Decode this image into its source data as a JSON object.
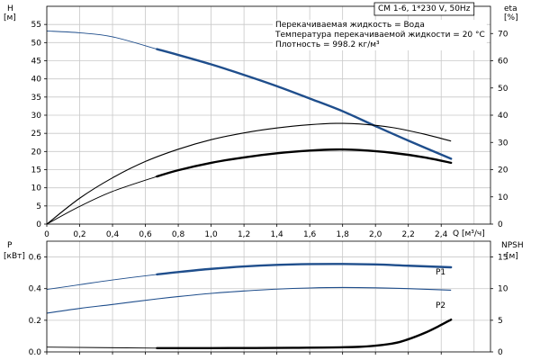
{
  "chart_data": [
    {
      "type": "line",
      "title": "CM 1-6, 1*230 V, 50Hz",
      "annotations": [
        "Перекачиваемая жидкость = Вода",
        "Температура перекачиваемой жидкости = 20 °C",
        "Плотность = 998.2 кг/м³"
      ],
      "xlabel": "Q [м³/ч]",
      "x_unit": "[м³/ч]",
      "xlim": [
        0,
        2.7
      ],
      "x_ticks": [
        "0",
        "0,2",
        "0,4",
        "0,6",
        "0,8",
        "1,0",
        "1,2",
        "1,4",
        "1,6",
        "1,8",
        "2,0",
        "2,2",
        "2,4"
      ],
      "y_left": {
        "label": "H",
        "unit": "[м]",
        "lim": [
          0,
          60
        ],
        "ticks": [
          "0",
          "5",
          "10",
          "15",
          "20",
          "25",
          "30",
          "35",
          "40",
          "45",
          "50",
          "55"
        ]
      },
      "y_right": {
        "label": "eta",
        "unit": "[%]",
        "lim": [
          0,
          80
        ],
        "ticks": [
          "0",
          "10",
          "20",
          "30",
          "40",
          "50",
          "60",
          "70"
        ]
      },
      "grid": true,
      "series": [
        {
          "id": "H",
          "axis": "left",
          "color": "#1f4e8c",
          "x": [
            0,
            0.2,
            0.4,
            0.67,
            0.8,
            1.0,
            1.2,
            1.4,
            1.6,
            1.8,
            2.0,
            2.2,
            2.46
          ],
          "y": [
            53.2,
            52.7,
            51.6,
            48.2,
            46.6,
            44.0,
            41.1,
            38.0,
            34.6,
            31.1,
            27.0,
            23.0,
            18.0
          ],
          "solid_from": 0.67
        },
        {
          "id": "eta-total",
          "axis": "right",
          "color": "#000000",
          "x": [
            0,
            0.2,
            0.4,
            0.6,
            0.8,
            1.0,
            1.2,
            1.4,
            1.6,
            1.76,
            1.9,
            2.1,
            2.3,
            2.46
          ],
          "y": [
            0,
            9.5,
            17.0,
            23.0,
            27.5,
            31.0,
            33.5,
            35.3,
            36.5,
            37.0,
            36.8,
            35.5,
            33.0,
            30.5
          ]
        },
        {
          "id": "eta-hydraulic",
          "axis": "right",
          "color": "#000000",
          "x": [
            0,
            0.2,
            0.4,
            0.67,
            0.8,
            1.0,
            1.2,
            1.4,
            1.6,
            1.76,
            1.9,
            2.1,
            2.3,
            2.46
          ],
          "y": [
            0,
            6.5,
            12.0,
            17.5,
            19.8,
            22.5,
            24.5,
            26.0,
            27.0,
            27.4,
            27.2,
            26.2,
            24.5,
            22.5
          ],
          "solid_from": 0.67
        }
      ]
    },
    {
      "type": "line",
      "xlim": [
        0,
        2.7
      ],
      "y_left": {
        "label": "P",
        "unit": "[кВт]",
        "lim": [
          0,
          0.7
        ],
        "ticks": [
          "0.0",
          "0.2",
          "0.4",
          "0.6"
        ]
      },
      "y_right": {
        "label": "NPSH",
        "unit": "[м]",
        "lim": [
          0,
          17.5
        ],
        "ticks": [
          "0",
          "5",
          "10",
          "15"
        ]
      },
      "grid": true,
      "series": [
        {
          "id": "P1",
          "name": "P1",
          "axis": "left",
          "color": "#1f4e8c",
          "x": [
            0,
            0.2,
            0.4,
            0.67,
            0.8,
            1.0,
            1.2,
            1.4,
            1.6,
            1.8,
            2.0,
            2.2,
            2.46
          ],
          "y": [
            0.395,
            0.425,
            0.455,
            0.49,
            0.505,
            0.525,
            0.54,
            0.55,
            0.555,
            0.556,
            0.553,
            0.545,
            0.535
          ],
          "solid_from": 0.67
        },
        {
          "id": "P2",
          "name": "P2",
          "axis": "left",
          "color": "#1f4e8c",
          "x": [
            0,
            0.2,
            0.4,
            0.67,
            0.8,
            1.0,
            1.2,
            1.4,
            1.6,
            1.8,
            2.0,
            2.2,
            2.46
          ],
          "y": [
            0.245,
            0.275,
            0.3,
            0.335,
            0.35,
            0.37,
            0.385,
            0.397,
            0.404,
            0.407,
            0.405,
            0.4,
            0.39
          ]
        },
        {
          "id": "NPSH",
          "axis": "right",
          "color": "#000000",
          "x": [
            0,
            0.67,
            1.0,
            1.5,
            1.9,
            2.1,
            2.2,
            2.3,
            2.38,
            2.46
          ],
          "y": [
            0.75,
            0.6,
            0.6,
            0.65,
            0.8,
            1.3,
            2.0,
            3.0,
            4.0,
            5.1
          ],
          "solid_from": 0.67
        }
      ]
    }
  ]
}
